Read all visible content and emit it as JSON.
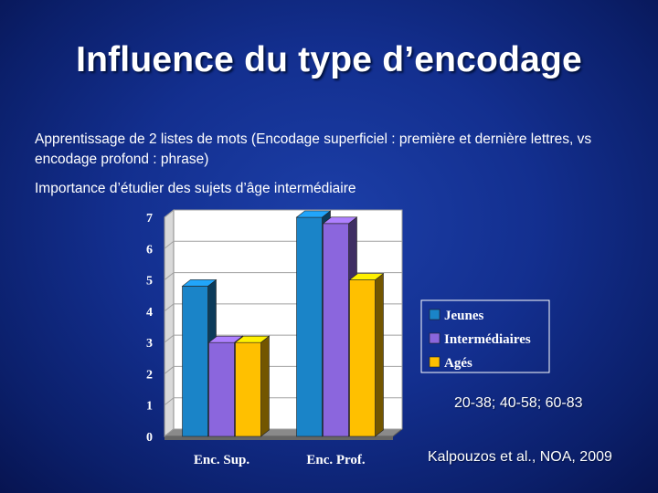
{
  "slide": {
    "title": "Influence du type d’encodage",
    "line1": "Apprentissage de 2 listes de mots (Encodage superficiel : première et dernière lettres, vs encodage profond : phrase)",
    "line2": "Importance d’étudier des sujets d’âge intermédiaire",
    "age_ranges": "20-38; 40-58; 60-83",
    "citation": "Kalpouzos et al., NOA, 2009"
  },
  "chart_data": {
    "type": "bar",
    "title": "",
    "xlabel": "",
    "ylabel": "",
    "categories": [
      "Enc. Sup.",
      "Enc. Prof."
    ],
    "series": [
      {
        "name": "Jeunes",
        "values": [
          4.8,
          7.0
        ],
        "color": "#1a84c8"
      },
      {
        "name": "Intermédiaires",
        "values": [
          3.0,
          6.8
        ],
        "color": "#8b66dd"
      },
      {
        "name": "Agés",
        "values": [
          3.0,
          5.0
        ],
        "color": "#ffc000"
      }
    ],
    "ylim": [
      0,
      7
    ],
    "yticks": [
      "0",
      "1",
      "2",
      "3",
      "4",
      "5",
      "6",
      "7"
    ],
    "grid": true,
    "three_d": true,
    "legend_position": "right"
  }
}
